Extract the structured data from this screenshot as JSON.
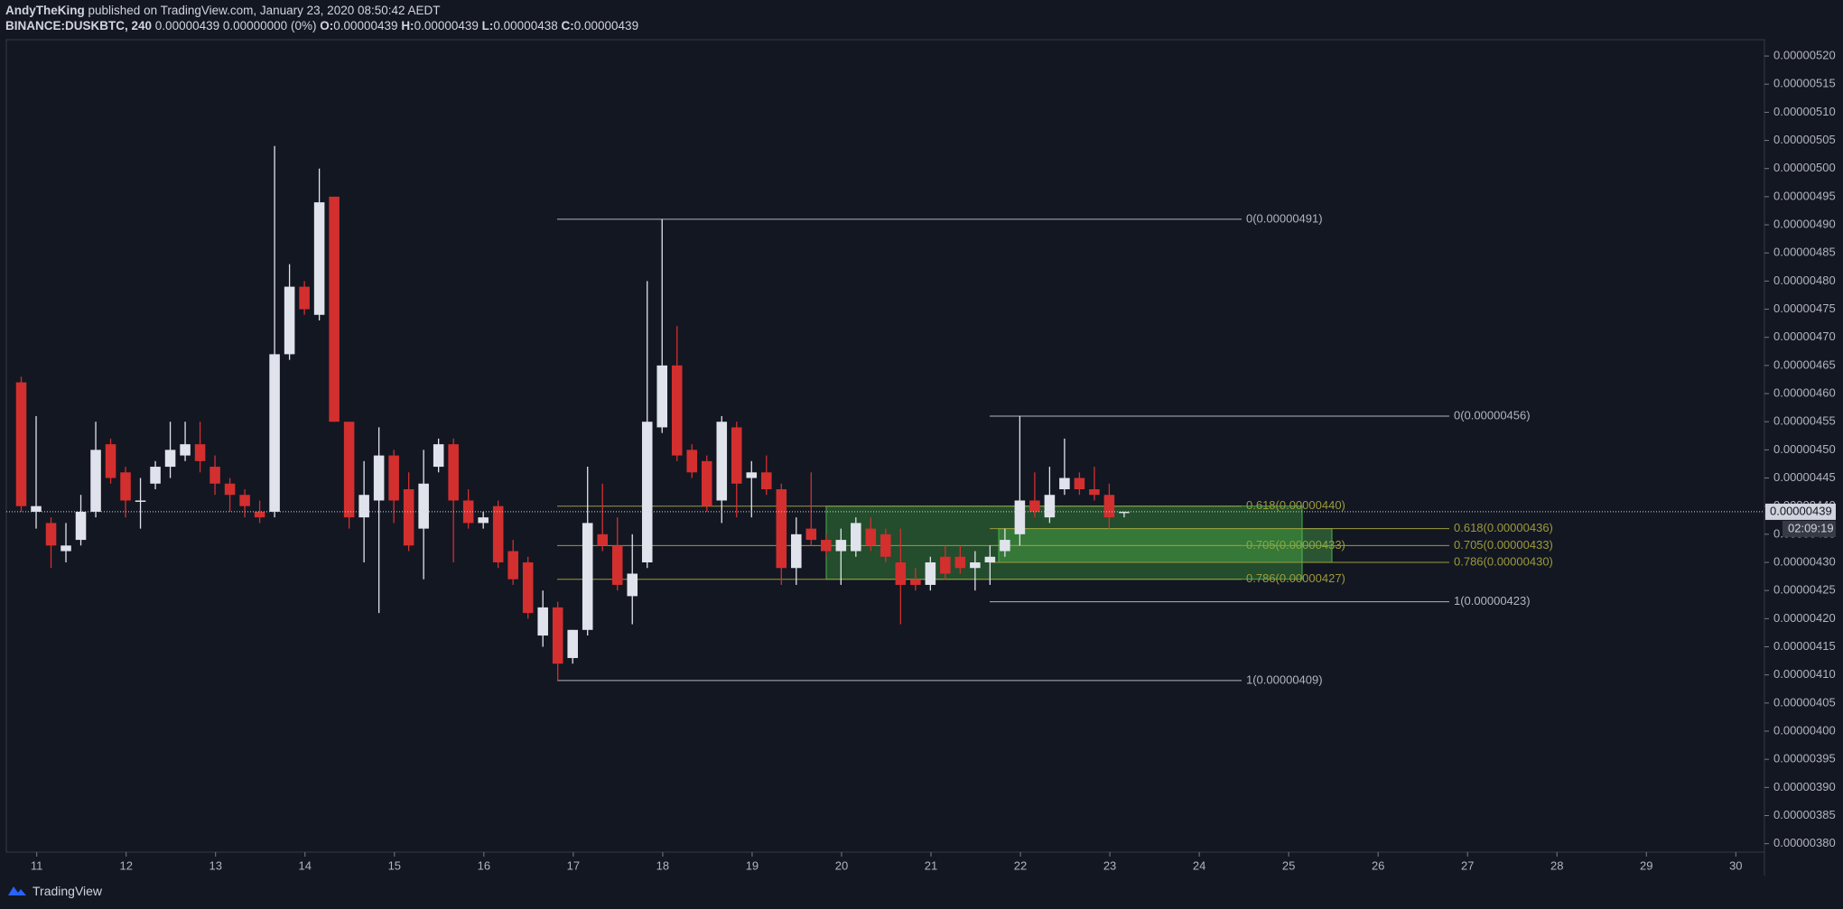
{
  "header": {
    "author": "AndyTheKing",
    "published": "published on TradingView.com, January 23, 2020 08:50:42 AEDT",
    "symbol": "BINANCE:DUSKBTC, 240",
    "quote": "0.00000439 0.00000000 (0%)",
    "ohlc": [
      {
        "key": "O:",
        "value": "0.00000439"
      },
      {
        "key": "H:",
        "value": "0.00000439"
      },
      {
        "key": "L:",
        "value": "0.00000438"
      },
      {
        "key": "C:",
        "value": "0.00000439"
      }
    ]
  },
  "chart_data": {
    "type": "candlestick",
    "up_color": "#e0e3eb",
    "down_color": "#d32f2f",
    "open": [
      4.62e-06,
      4.39e-06,
      4.37e-06,
      4.32e-06,
      4.34e-06,
      4.39e-06,
      4.51e-06,
      4.46e-06,
      4.41e-06,
      4.44e-06,
      4.47e-06,
      4.49e-06,
      4.51e-06,
      4.47e-06,
      4.44e-06,
      4.42e-06,
      4.39e-06,
      4.39e-06,
      4.67e-06,
      4.79e-06,
      4.74e-06,
      4.95e-06,
      4.55e-06,
      4.38e-06,
      4.41e-06,
      4.49e-06,
      4.43e-06,
      4.36e-06,
      4.47e-06,
      4.51e-06,
      4.41e-06,
      4.37e-06,
      4.4e-06,
      4.32e-06,
      4.3e-06,
      4.17e-06,
      4.22e-06,
      4.13e-06,
      4.18e-06,
      4.35e-06,
      4.33e-06,
      4.24e-06,
      4.3e-06,
      4.54e-06,
      4.65e-06,
      4.5e-06,
      4.48e-06,
      4.41e-06,
      4.54e-06,
      4.45e-06,
      4.46e-06,
      4.43e-06,
      4.29e-06,
      4.36e-06,
      4.34e-06,
      4.32e-06,
      4.32e-06,
      4.36e-06,
      4.35e-06,
      4.3e-06,
      4.27e-06,
      4.26e-06,
      4.31e-06,
      4.31e-06,
      4.29e-06,
      4.3e-06,
      4.32e-06,
      4.35e-06,
      4.41e-06,
      4.38e-06,
      4.43e-06,
      4.45e-06,
      4.43e-06,
      4.42e-06,
      4.39e-06
    ],
    "high": [
      4.63e-06,
      4.56e-06,
      4.38e-06,
      4.37e-06,
      4.42e-06,
      4.55e-06,
      4.52e-06,
      4.47e-06,
      4.45e-06,
      4.48e-06,
      4.55e-06,
      4.55e-06,
      4.55e-06,
      4.49e-06,
      4.45e-06,
      4.43e-06,
      4.41e-06,
      5.04e-06,
      4.83e-06,
      4.8e-06,
      5e-06,
      4.95e-06,
      4.55e-06,
      4.48e-06,
      4.54e-06,
      4.5e-06,
      4.46e-06,
      4.5e-06,
      4.52e-06,
      4.52e-06,
      4.43e-06,
      4.39e-06,
      4.41e-06,
      4.34e-06,
      4.31e-06,
      4.25e-06,
      4.23e-06,
      4.18e-06,
      4.47e-06,
      4.44e-06,
      4.38e-06,
      4.35e-06,
      4.8e-06,
      4.91e-06,
      4.72e-06,
      4.51e-06,
      4.49e-06,
      4.56e-06,
      4.55e-06,
      4.48e-06,
      4.49e-06,
      4.44e-06,
      4.38e-06,
      4.46e-06,
      4.35e-06,
      4.36e-06,
      4.38e-06,
      4.38e-06,
      4.36e-06,
      4.36e-06,
      4.29e-06,
      4.31e-06,
      4.33e-06,
      4.33e-06,
      4.32e-06,
      4.33e-06,
      4.36e-06,
      4.56e-06,
      4.46e-06,
      4.47e-06,
      4.52e-06,
      4.46e-06,
      4.47e-06,
      4.44e-06,
      4.39e-06
    ],
    "low": [
      4.39e-06,
      4.36e-06,
      4.29e-06,
      4.3e-06,
      4.33e-06,
      4.38e-06,
      4.44e-06,
      4.38e-06,
      4.36e-06,
      4.43e-06,
      4.45e-06,
      4.48e-06,
      4.46e-06,
      4.42e-06,
      4.39e-06,
      4.38e-06,
      4.37e-06,
      4.38e-06,
      4.66e-06,
      4.74e-06,
      4.73e-06,
      4.55e-06,
      4.36e-06,
      4.3e-06,
      4.21e-06,
      4.37e-06,
      4.32e-06,
      4.27e-06,
      4.46e-06,
      4.3e-06,
      4.36e-06,
      4.36e-06,
      4.29e-06,
      4.26e-06,
      4.2e-06,
      4.15e-06,
      4.09e-06,
      4.12e-06,
      4.17e-06,
      4.32e-06,
      4.25e-06,
      4.19e-06,
      4.29e-06,
      4.53e-06,
      4.48e-06,
      4.45e-06,
      4.39e-06,
      4.37e-06,
      4.38e-06,
      4.38e-06,
      4.42e-06,
      4.26e-06,
      4.26e-06,
      4.33e-06,
      4.31e-06,
      4.26e-06,
      4.31e-06,
      4.32e-06,
      4.3e-06,
      4.19e-06,
      4.25e-06,
      4.25e-06,
      4.27e-06,
      4.28e-06,
      4.25e-06,
      4.26e-06,
      4.31e-06,
      4.33e-06,
      4.38e-06,
      4.37e-06,
      4.42e-06,
      4.42e-06,
      4.41e-06,
      4.36e-06,
      4.38e-06
    ],
    "close": [
      4.4e-06,
      4.4e-06,
      4.33e-06,
      4.33e-06,
      4.39e-06,
      4.5e-06,
      4.45e-06,
      4.41e-06,
      4.41e-06,
      4.47e-06,
      4.5e-06,
      4.51e-06,
      4.48e-06,
      4.44e-06,
      4.42e-06,
      4.4e-06,
      4.38e-06,
      4.67e-06,
      4.79e-06,
      4.75e-06,
      4.94e-06,
      4.55e-06,
      4.38e-06,
      4.42e-06,
      4.49e-06,
      4.41e-06,
      4.33e-06,
      4.44e-06,
      4.51e-06,
      4.41e-06,
      4.37e-06,
      4.38e-06,
      4.3e-06,
      4.27e-06,
      4.21e-06,
      4.22e-06,
      4.12e-06,
      4.18e-06,
      4.37e-06,
      4.33e-06,
      4.26e-06,
      4.28e-06,
      4.55e-06,
      4.65e-06,
      4.49e-06,
      4.46e-06,
      4.4e-06,
      4.55e-06,
      4.44e-06,
      4.46e-06,
      4.43e-06,
      4.29e-06,
      4.35e-06,
      4.34e-06,
      4.32e-06,
      4.34e-06,
      4.37e-06,
      4.33e-06,
      4.31e-06,
      4.26e-06,
      4.26e-06,
      4.3e-06,
      4.28e-06,
      4.29e-06,
      4.3e-06,
      4.31e-06,
      4.34e-06,
      4.41e-06,
      4.39e-06,
      4.42e-06,
      4.45e-06,
      4.43e-06,
      4.42e-06,
      4.38e-06,
      4.39e-06
    ],
    "xlim": [
      10.66,
      30.32
    ],
    "xticks": [
      11,
      12,
      13,
      14,
      15,
      16,
      17,
      18,
      19,
      20,
      21,
      22,
      23,
      24,
      25,
      26,
      27,
      28,
      29,
      30
    ],
    "ylim": [
      3.785e-06,
      5.229e-06
    ],
    "yticks": [
      {
        "value": 3.8e-06,
        "label": "0.00000380"
      },
      {
        "value": 3.85e-06,
        "label": "0.00000385"
      },
      {
        "value": 3.9e-06,
        "label": "0.00000390"
      },
      {
        "value": 3.95e-06,
        "label": "0.00000395"
      },
      {
        "value": 4e-06,
        "label": "0.00000400"
      },
      {
        "value": 4.05e-06,
        "label": "0.00000405"
      },
      {
        "value": 4.1e-06,
        "label": "0.00000410"
      },
      {
        "value": 4.15e-06,
        "label": "0.00000415"
      },
      {
        "value": 4.2e-06,
        "label": "0.00000420"
      },
      {
        "value": 4.25e-06,
        "label": "0.00000425"
      },
      {
        "value": 4.3e-06,
        "label": "0.00000430"
      },
      {
        "value": 4.35e-06,
        "label": "0.00000435"
      },
      {
        "value": 4.4e-06,
        "label": "0.00000440"
      },
      {
        "value": 4.45e-06,
        "label": "0.00000445"
      },
      {
        "value": 4.5e-06,
        "label": "0.00000450"
      },
      {
        "value": 4.55e-06,
        "label": "0.00000455"
      },
      {
        "value": 4.6e-06,
        "label": "0.00000460"
      },
      {
        "value": 4.65e-06,
        "label": "0.00000465"
      },
      {
        "value": 4.7e-06,
        "label": "0.00000470"
      },
      {
        "value": 4.75e-06,
        "label": "0.00000475"
      },
      {
        "value": 4.8e-06,
        "label": "0.00000480"
      },
      {
        "value": 4.85e-06,
        "label": "0.00000485"
      },
      {
        "value": 4.9e-06,
        "label": "0.00000490"
      },
      {
        "value": 4.95e-06,
        "label": "0.00000495"
      },
      {
        "value": 5e-06,
        "label": "0.00000500"
      },
      {
        "value": 5.05e-06,
        "label": "0.00000505"
      },
      {
        "value": 5.1e-06,
        "label": "0.00000510"
      },
      {
        "value": 5.15e-06,
        "label": "0.00000515"
      },
      {
        "value": 5.2e-06,
        "label": "0.00000520"
      }
    ],
    "last_price": {
      "value": 4.39e-06,
      "label": "0.00000439"
    },
    "countdown": "02:09:19",
    "fibs": [
      {
        "levels": [
          {
            "label": "0(0.00000491)",
            "value": 4.91e-06,
            "color": "#b2b5be"
          },
          {
            "label": "0.618(0.00000440)",
            "value": 4.4e-06,
            "color": "#9c9a3c"
          },
          {
            "label": "0.705(0.00000433)",
            "value": 4.33e-06,
            "color": "#9c9a3c"
          },
          {
            "label": "0.786(0.00000427)",
            "value": 4.27e-06,
            "color": "#9c9a3c"
          },
          {
            "label": "1(0.00000409)",
            "value": 4.09e-06,
            "color": "#b2b5be"
          }
        ]
      },
      {
        "levels": [
          {
            "label": "0(0.00000456)",
            "value": 4.56e-06,
            "color": "#b2b5be"
          },
          {
            "label": "0.618(0.00000436)",
            "value": 4.36e-06,
            "color": "#9c9a3c"
          },
          {
            "label": "0.705(0.00000433)",
            "value": 4.33e-06,
            "color": "#9c9a3c"
          },
          {
            "label": "0.786(0.00000430)",
            "value": 4.3e-06,
            "color": "#9c9a3c"
          },
          {
            "label": "1(0.00000423)",
            "value": 4.23e-06,
            "color": "#b2b5be"
          }
        ]
      }
    ]
  },
  "footer": {
    "brand": "TradingView"
  }
}
